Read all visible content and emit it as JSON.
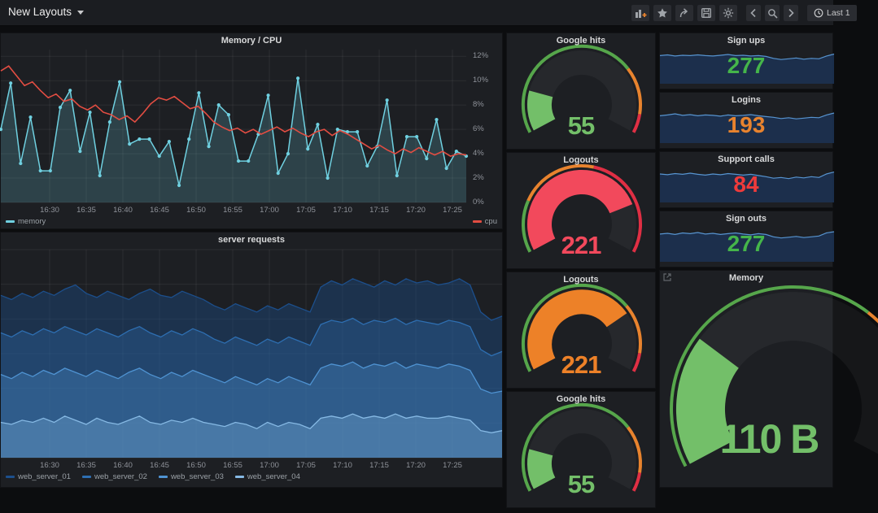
{
  "navbar": {
    "title": "New Layouts",
    "time_label": "Last 1",
    "icons": [
      "add-panel",
      "star",
      "share",
      "save",
      "settings",
      "chevron-left",
      "zoom-search",
      "chevron-right",
      "clock"
    ]
  },
  "colors": {
    "panel_bg": "#1d1f23",
    "page_bg": "#0c0d0f",
    "green": "#56A64B",
    "orange": "#E8832E",
    "red": "#E02F44",
    "memory_teal": "#6FD0E0",
    "cpu_red": "#E24D42"
  },
  "chart_data": [
    {
      "panel": "memory-cpu",
      "type": "line",
      "title": "Memory / CPU",
      "ylabel": "",
      "unit": "%",
      "ylim": [
        0,
        12.55
      ],
      "grid": true,
      "legend_position": "bottom",
      "y_ticks": [
        "12%",
        "10%",
        "8%",
        "6%",
        "4%",
        "2%",
        "0%"
      ],
      "y_tick_values": [
        12,
        10,
        8,
        6,
        4,
        2,
        0
      ],
      "x_ticks": [
        "16:30",
        "16:35",
        "16:40",
        "16:45",
        "16:50",
        "16:55",
        "17:00",
        "17:05",
        "17:10",
        "17:15",
        "17:20",
        "17:25"
      ],
      "series": [
        {
          "name": "memory",
          "color": "#6FD0E0",
          "fill": "rgba(111,208,224,0.20)",
          "markers": true,
          "values": [
            6.0,
            9.8,
            3.2,
            7.0,
            2.6,
            2.6,
            7.8,
            9.2,
            4.2,
            7.4,
            2.2,
            6.6,
            9.9,
            4.8,
            5.2,
            5.2,
            3.8,
            5.0,
            1.4,
            5.2,
            9.0,
            4.6,
            8.0,
            7.2,
            3.4,
            3.4,
            5.6,
            8.8,
            2.4,
            4.0,
            10.2,
            4.4,
            6.4,
            2.0,
            6.0,
            5.8,
            5.8,
            3.0,
            4.6,
            8.4,
            2.2,
            5.4,
            5.4,
            3.6,
            6.8,
            2.8,
            4.2,
            3.8
          ]
        },
        {
          "name": "cpu",
          "color": "#E24D42",
          "fill": "none",
          "markers": false,
          "values": [
            10.8,
            11.2,
            10.4,
            9.6,
            9.9,
            9.2,
            8.6,
            8.9,
            8.3,
            8.5,
            7.9,
            7.6,
            8.0,
            7.4,
            7.2,
            6.8,
            7.1,
            6.6,
            7.3,
            8.1,
            8.6,
            8.4,
            8.7,
            8.2,
            7.7,
            7.9,
            7.3,
            6.6,
            6.2,
            5.9,
            6.1,
            5.7,
            6.0,
            5.6,
            5.9,
            6.2,
            5.8,
            6.1,
            5.7,
            5.4,
            5.8,
            6.0,
            5.5,
            5.9,
            5.6,
            5.2,
            4.8,
            4.4,
            4.7,
            4.3,
            4.0,
            4.4,
            4.1,
            4.5,
            4.2,
            3.9,
            4.2,
            3.8,
            4.0,
            3.9
          ]
        }
      ]
    },
    {
      "panel": "server-requests",
      "type": "area",
      "title": "server requests",
      "ylim": [
        0,
        100
      ],
      "grid": true,
      "legend_position": "bottom",
      "x_ticks": [
        "16:30",
        "16:35",
        "16:40",
        "16:45",
        "16:50",
        "16:55",
        "17:00",
        "17:05",
        "17:10",
        "17:15",
        "17:20",
        "17:25"
      ],
      "series": [
        {
          "name": "web_server_01",
          "color": "#1c4f8c",
          "fill": "rgba(28,79,140,0.40)",
          "values": [
            78,
            76,
            79,
            77,
            80,
            78,
            81,
            83,
            79,
            77,
            80,
            78,
            76,
            79,
            81,
            78,
            77,
            80,
            78,
            76,
            73,
            71,
            74,
            72,
            70,
            73,
            71,
            74,
            72,
            70,
            82,
            85,
            83,
            86,
            84,
            82,
            85,
            83,
            86,
            84,
            85,
            83,
            84,
            86,
            83,
            70,
            66,
            68
          ]
        },
        {
          "name": "web_server_02",
          "color": "#2e6fb2",
          "fill": "rgba(46,111,178,0.32)",
          "values": [
            60,
            58,
            61,
            59,
            62,
            60,
            63,
            61,
            59,
            62,
            60,
            58,
            61,
            63,
            60,
            58,
            61,
            59,
            62,
            60,
            57,
            55,
            58,
            56,
            54,
            57,
            55,
            58,
            56,
            54,
            64,
            66,
            65,
            67,
            64,
            66,
            65,
            67,
            64,
            66,
            65,
            64,
            66,
            65,
            63,
            52,
            49,
            51
          ]
        },
        {
          "name": "web_server_03",
          "color": "#4f93d2",
          "fill": "rgba(79,147,210,0.30)",
          "values": [
            40,
            38,
            41,
            39,
            42,
            40,
            43,
            41,
            39,
            42,
            40,
            38,
            41,
            43,
            40,
            38,
            41,
            39,
            42,
            40,
            38,
            36,
            39,
            37,
            35,
            38,
            36,
            39,
            37,
            35,
            43,
            45,
            44,
            46,
            43,
            45,
            44,
            46,
            43,
            45,
            44,
            43,
            45,
            44,
            42,
            33,
            31,
            32
          ]
        },
        {
          "name": "web_server_04",
          "color": "#86b9e4",
          "fill": "rgba(134,185,228,0.30)",
          "values": [
            17,
            16,
            18,
            17,
            19,
            17,
            20,
            18,
            16,
            19,
            17,
            16,
            18,
            20,
            17,
            16,
            18,
            17,
            19,
            17,
            16,
            15,
            17,
            16,
            14,
            17,
            15,
            17,
            16,
            14,
            19,
            20,
            19,
            21,
            19,
            20,
            19,
            21,
            19,
            20,
            19,
            19,
            20,
            19,
            18,
            13,
            12,
            13
          ]
        }
      ]
    },
    {
      "panel": "gauge",
      "type": "gauge",
      "title": "Google hits",
      "value": 55,
      "min": 0,
      "max": 300,
      "value_color": "#73BF69",
      "thresholds": [
        {
          "frac": 0.72,
          "color": "#56A64B"
        },
        {
          "frac": 0.92,
          "color": "#E8832E"
        },
        {
          "frac": 1,
          "color": "#E02F44"
        }
      ]
    },
    {
      "panel": "gauge",
      "type": "gauge",
      "title": "Logouts",
      "value": 221,
      "min": 0,
      "max": 280,
      "value_color": "#F2495C",
      "thresholds": [
        {
          "frac": 0.22,
          "color": "#56A64B"
        },
        {
          "frac": 0.55,
          "color": "#E8832E"
        },
        {
          "frac": 1,
          "color": "#E02F44"
        }
      ]
    },
    {
      "panel": "gauge",
      "type": "gauge",
      "title": "Logouts",
      "value": 221,
      "min": 0,
      "max": 300,
      "value_color": "#ED8128",
      "thresholds": [
        {
          "frac": 0.71,
          "color": "#56A64B"
        },
        {
          "frac": 0.92,
          "color": "#E8832E"
        },
        {
          "frac": 1,
          "color": "#E02F44"
        }
      ]
    },
    {
      "panel": "gauge",
      "type": "gauge",
      "title": "Google hits",
      "value": 55,
      "min": 0,
      "max": 300,
      "value_color": "#73BF69",
      "thresholds": [
        {
          "frac": 0.72,
          "color": "#56A64B"
        },
        {
          "frac": 0.92,
          "color": "#E8832E"
        },
        {
          "frac": 1,
          "color": "#E02F44"
        }
      ]
    },
    {
      "panel": "stat",
      "type": "area",
      "title": "Sign ups",
      "value": 277,
      "value_color": "#45B54A",
      "spark_color": "#5794d0",
      "spark_fill": "#1c3150",
      "values": [
        72,
        74,
        71,
        73,
        72,
        74,
        72,
        71,
        73,
        75,
        72,
        73,
        71,
        72,
        70,
        65,
        62,
        64,
        66,
        63,
        65,
        64,
        71,
        76
      ]
    },
    {
      "panel": "stat",
      "type": "area",
      "title": "Logins",
      "value": 193,
      "value_color": "#E8832E",
      "spark_color": "#5794d0",
      "spark_fill": "#1c3150",
      "values": [
        70,
        72,
        75,
        71,
        73,
        70,
        72,
        71,
        69,
        72,
        70,
        71,
        73,
        70,
        68,
        66,
        63,
        65,
        62,
        64,
        66,
        65,
        72,
        77
      ]
    },
    {
      "panel": "stat",
      "type": "area",
      "title": "Support calls",
      "value": 84,
      "value_color": "#EF3B3B",
      "spark_color": "#5794d0",
      "spark_fill": "#1c3150",
      "values": [
        73,
        71,
        74,
        72,
        75,
        72,
        70,
        73,
        71,
        74,
        72,
        70,
        72,
        69,
        66,
        62,
        64,
        61,
        65,
        63,
        66,
        64,
        73,
        78
      ]
    },
    {
      "panel": "stat",
      "type": "area",
      "title": "Sign outs",
      "value": 277,
      "value_color": "#45B54A",
      "spark_color": "#5794d0",
      "spark_fill": "#1c3150",
      "values": [
        71,
        73,
        70,
        74,
        72,
        75,
        71,
        73,
        70,
        72,
        74,
        71,
        69,
        72,
        70,
        64,
        61,
        63,
        65,
        62,
        64,
        66,
        74,
        77
      ]
    },
    {
      "panel": "gauge-large",
      "type": "gauge",
      "title": "Memory",
      "value": 110,
      "value_text": "110 B",
      "min": 0,
      "max": 400,
      "value_color": "#73BF69",
      "thresholds": [
        {
          "frac": 0.66,
          "color": "#56A64B"
        },
        {
          "frac": 0.88,
          "color": "#E8832E"
        },
        {
          "frac": 1,
          "color": "#E02F44"
        }
      ]
    }
  ]
}
